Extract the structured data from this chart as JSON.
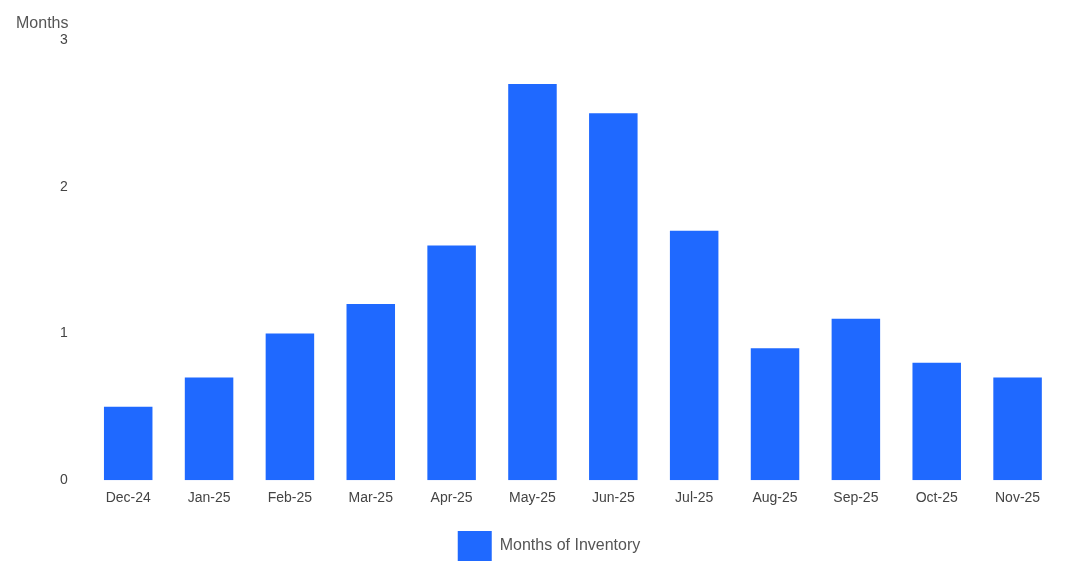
{
  "chart_data": {
    "type": "bar",
    "ylabel": "Months",
    "categories": [
      "Dec-24",
      "Jan-25",
      "Feb-25",
      "Mar-25",
      "Apr-25",
      "May-25",
      "Jun-25",
      "Jul-25",
      "Aug-25",
      "Sep-25",
      "Oct-25",
      "Nov-25"
    ],
    "series": [
      {
        "name": "Months of Inventory",
        "color": "#1f69ff",
        "values": [
          0.5,
          0.7,
          1.0,
          1.2,
          1.6,
          2.7,
          2.5,
          1.7,
          0.9,
          1.1,
          0.8,
          0.7
        ]
      }
    ],
    "ylim": [
      0,
      3
    ],
    "yticks": [
      0,
      1,
      2,
      3
    ],
    "grid": false,
    "legend": "bottom"
  }
}
